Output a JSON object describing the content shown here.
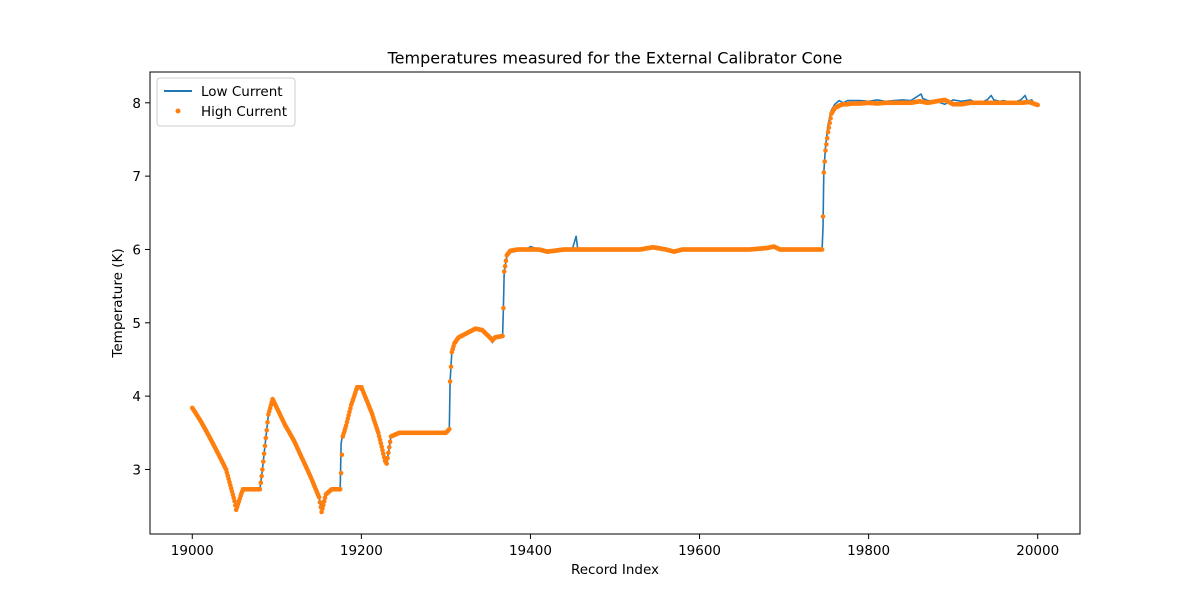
{
  "chart_data": {
    "type": "line",
    "title": "Temperatures measured for the External Calibrator Cone",
    "xlabel": "Record Index",
    "ylabel": "Temperature (K)",
    "xlim": [
      18950,
      20050
    ],
    "ylim": [
      2.12,
      8.42
    ],
    "xticks": [
      19000,
      19200,
      19400,
      19600,
      19800,
      20000
    ],
    "yticks": [
      3,
      4,
      5,
      6,
      7,
      8
    ],
    "grid": false,
    "legend_position": "upper-left",
    "series": [
      {
        "name": "Low Current",
        "style": "line",
        "color": "#1f77b4",
        "x": [
          19000,
          19010,
          19020,
          19030,
          19040,
          19050,
          19052,
          19058,
          19060,
          19070,
          19080,
          19083,
          19090,
          19095,
          19100,
          19110,
          19120,
          19130,
          19140,
          19150,
          19153,
          19158,
          19165,
          19175,
          19176,
          19178,
          19182,
          19188,
          19195,
          19200,
          19205,
          19212,
          19220,
          19228,
          19230,
          19235,
          19245,
          19260,
          19280,
          19300,
          19304,
          19305,
          19307,
          19310,
          19315,
          19325,
          19335,
          19343,
          19352,
          19355,
          19358,
          19367,
          19368,
          19369,
          19372,
          19376,
          19385,
          19395,
          19400,
          19410,
          19420,
          19440,
          19450,
          19454,
          19456,
          19460,
          19480,
          19500,
          19530,
          19545,
          19560,
          19570,
          19580,
          19600,
          19620,
          19640,
          19660,
          19680,
          19688,
          19695,
          19710,
          19730,
          19745,
          19746,
          19747,
          19749,
          19752,
          19756,
          19760,
          19765,
          19770,
          19775,
          19780,
          19790,
          19800,
          19810,
          19820,
          19830,
          19840,
          19850,
          19862,
          19864,
          19870,
          19880,
          19890,
          19900,
          19910,
          19920,
          19930,
          19940,
          19945,
          19948,
          19955,
          19960,
          19970,
          19980,
          19985,
          19988,
          19993,
          19997,
          20000
        ],
        "y": [
          3.84,
          3.66,
          3.45,
          3.23,
          3.0,
          2.57,
          2.45,
          2.67,
          2.73,
          2.73,
          2.73,
          3.0,
          3.75,
          3.96,
          3.84,
          3.6,
          3.4,
          3.15,
          2.9,
          2.62,
          2.42,
          2.66,
          2.73,
          2.73,
          3.35,
          3.5,
          3.6,
          3.88,
          4.12,
          4.12,
          3.98,
          3.78,
          3.5,
          3.12,
          3.08,
          3.45,
          3.5,
          3.5,
          3.5,
          3.5,
          3.55,
          4.2,
          4.6,
          4.72,
          4.8,
          4.86,
          4.92,
          4.9,
          4.8,
          4.73,
          4.8,
          4.82,
          5.2,
          5.7,
          5.9,
          6.0,
          6.0,
          6.0,
          6.04,
          6.0,
          5.97,
          6.0,
          6.02,
          6.18,
          6.0,
          6.0,
          6.0,
          6.0,
          6.0,
          6.03,
          6.0,
          5.97,
          6.0,
          6.0,
          6.0,
          6.0,
          6.0,
          6.02,
          6.04,
          6.0,
          6.0,
          6.0,
          6.0,
          6.3,
          7.05,
          7.4,
          7.7,
          7.9,
          7.98,
          8.03,
          8.0,
          8.03,
          8.03,
          8.03,
          8.02,
          8.04,
          8.02,
          8.03,
          8.04,
          8.03,
          8.12,
          8.06,
          8.03,
          8.02,
          7.98,
          8.04,
          8.02,
          8.04,
          7.99,
          8.04,
          8.1,
          8.04,
          8.02,
          8.03,
          8.0,
          8.04,
          8.1,
          8.02,
          8.04,
          7.96,
          7.98
        ]
      },
      {
        "name": "High Current",
        "style": "scatter",
        "color": "#ff7f0e",
        "x": [
          19000,
          19010,
          19020,
          19030,
          19040,
          19050,
          19052,
          19058,
          19060,
          19070,
          19080,
          19083,
          19090,
          19095,
          19100,
          19110,
          19120,
          19130,
          19140,
          19150,
          19153,
          19158,
          19165,
          19175,
          19176,
          19178,
          19182,
          19188,
          19195,
          19200,
          19205,
          19212,
          19220,
          19228,
          19230,
          19235,
          19245,
          19260,
          19280,
          19300,
          19304,
          19305,
          19307,
          19310,
          19315,
          19325,
          19335,
          19343,
          19352,
          19355,
          19358,
          19367,
          19368,
          19369,
          19372,
          19376,
          19385,
          19395,
          19400,
          19410,
          19420,
          19440,
          19460,
          19480,
          19500,
          19530,
          19545,
          19560,
          19570,
          19580,
          19600,
          19620,
          19640,
          19660,
          19680,
          19688,
          19695,
          19710,
          19730,
          19745,
          19746,
          19747,
          19749,
          19752,
          19756,
          19760,
          19765,
          19770,
          19775,
          19780,
          19790,
          19800,
          19810,
          19820,
          19830,
          19840,
          19850,
          19860,
          19870,
          19880,
          19890,
          19900,
          19910,
          19920,
          19930,
          19940,
          19950,
          19960,
          19970,
          19980,
          19990,
          20000
        ],
        "y": [
          3.84,
          3.66,
          3.45,
          3.23,
          3.0,
          2.57,
          2.45,
          2.67,
          2.73,
          2.73,
          2.73,
          3.0,
          3.75,
          3.96,
          3.84,
          3.6,
          3.4,
          3.15,
          2.9,
          2.62,
          2.42,
          2.66,
          2.73,
          2.73,
          2.95,
          3.45,
          3.6,
          3.88,
          4.12,
          4.12,
          3.98,
          3.78,
          3.5,
          3.12,
          3.08,
          3.45,
          3.5,
          3.5,
          3.5,
          3.5,
          3.55,
          4.2,
          4.6,
          4.72,
          4.8,
          4.86,
          4.92,
          4.9,
          4.8,
          4.76,
          4.8,
          4.82,
          5.2,
          5.7,
          5.92,
          5.98,
          6.0,
          6.0,
          6.0,
          6.0,
          5.97,
          6.0,
          6.0,
          6.0,
          6.0,
          6.0,
          6.03,
          6.0,
          5.97,
          6.0,
          6.0,
          6.0,
          6.0,
          6.0,
          6.02,
          6.04,
          6.0,
          6.0,
          6.0,
          6.0,
          6.45,
          7.05,
          7.35,
          7.6,
          7.85,
          7.93,
          7.96,
          7.98,
          7.98,
          7.99,
          7.99,
          8.0,
          7.99,
          8.0,
          8.0,
          8.0,
          8.0,
          8.02,
          8.0,
          8.02,
          8.04,
          7.98,
          7.98,
          8.0,
          8.0,
          8.0,
          8.0,
          8.0,
          8.0,
          8.0,
          8.01,
          7.97
        ]
      }
    ]
  }
}
